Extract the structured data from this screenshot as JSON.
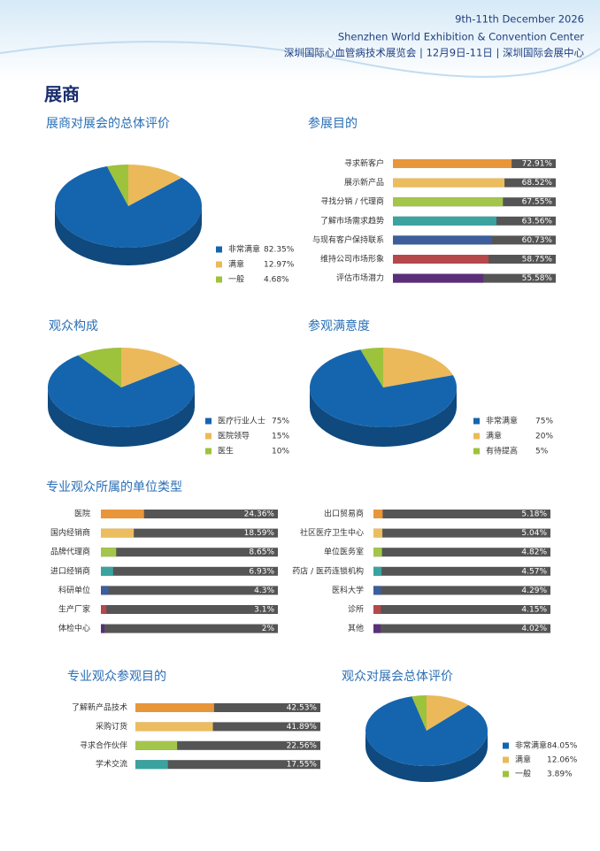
{
  "header": {
    "line1": "9th-11th December 2026",
    "line2": "Shenzhen World Exhibition & Convention Center",
    "line3": "深圳国际心血管病技术展览会 | 12月9日-11日 | 深圳国际会展中心"
  },
  "section_title": "展商",
  "chart_data": [
    {
      "type": "pie",
      "title": "展商对展会的总体评价",
      "categories": [
        "非常满意",
        "满意",
        "一般"
      ],
      "values": [
        82.35,
        12.97,
        4.68
      ],
      "value_labels": [
        "82.35%",
        "12.97%",
        "4.68%"
      ],
      "colors": [
        "#1565ae",
        "#ecb95a",
        "#9dc23c"
      ]
    },
    {
      "type": "bar",
      "title": "参展目的",
      "horizontal": true,
      "categories": [
        "寻求新客户",
        "展示新产品",
        "寻找分销 / 代理商",
        "了解市场需求趋势",
        "与现有客户保持联系",
        "维持公司市场形象",
        "评估市场潜力"
      ],
      "values": [
        72.91,
        68.52,
        67.55,
        63.56,
        60.73,
        58.75,
        55.58
      ],
      "value_labels": [
        "72.91%",
        "68.52%",
        "67.55%",
        "63.56%",
        "60.73%",
        "58.75%",
        "55.58%"
      ],
      "colors": [
        "#e8963a",
        "#ecbd5e",
        "#a3c64a",
        "#3aa3a0",
        "#3d5e9a",
        "#b5484a",
        "#5b2e7a"
      ],
      "xlim": [
        0,
        100
      ]
    },
    {
      "type": "pie",
      "title": "观众构成",
      "categories": [
        "医疗行业人士",
        "医院领导",
        "医生"
      ],
      "values": [
        75,
        15,
        10
      ],
      "value_labels": [
        "75%",
        "15%",
        "10%"
      ],
      "colors": [
        "#1565ae",
        "#ecb95a",
        "#9dc23c"
      ]
    },
    {
      "type": "pie",
      "title": "参观满意度",
      "categories": [
        "非常满意",
        "满意",
        "有待提高"
      ],
      "values": [
        75,
        20,
        5
      ],
      "value_labels": [
        "75%",
        "20%",
        "5%"
      ],
      "colors": [
        "#1565ae",
        "#ecb95a",
        "#9dc23c"
      ]
    },
    {
      "type": "bar",
      "title": "专业观众所属的单位类型",
      "horizontal": true,
      "categories": [
        "医院",
        "国内经销商",
        "品牌代理商",
        "进口经销商",
        "科研单位",
        "生产厂家",
        "体检中心",
        "出口贸易商",
        "社区医疗卫生中心",
        "单位医务室",
        "药店 / 医药连锁机构",
        "医科大学",
        "诊所",
        "其他"
      ],
      "values": [
        24.36,
        18.59,
        8.65,
        6.93,
        4.3,
        3.1,
        2,
        5.18,
        5.04,
        4.82,
        4.57,
        4.29,
        4.15,
        4.02
      ],
      "value_labels": [
        "24.36%",
        "18.59%",
        "8.65%",
        "6.93%",
        "4.3%",
        "3.1%",
        "2%",
        "5.18%",
        "5.04%",
        "4.82%",
        "4.57%",
        "4.29%",
        "4.15%",
        "4.02%"
      ],
      "colors": [
        "#e8963a",
        "#ecbd5e",
        "#a3c64a",
        "#3aa3a0",
        "#3d5e9a",
        "#b5484a",
        "#5b2e7a",
        "#e8963a",
        "#ecbd5e",
        "#a3c64a",
        "#3aa3a0",
        "#3d5e9a",
        "#b5484a",
        "#5b2e7a"
      ],
      "xlim": [
        0,
        100
      ]
    },
    {
      "type": "bar",
      "title": "专业观众参观目的",
      "horizontal": true,
      "categories": [
        "了解新产品技术",
        "采购订货",
        "寻求合作伙伴",
        "学术交流"
      ],
      "values": [
        42.53,
        41.89,
        22.56,
        17.55
      ],
      "value_labels": [
        "42.53%",
        "41.89%",
        "22.56%",
        "17.55%"
      ],
      "colors": [
        "#e8963a",
        "#ecbd5e",
        "#a3c64a",
        "#3aa3a0"
      ],
      "xlim": [
        0,
        100
      ]
    },
    {
      "type": "pie",
      "title": "观众对展会总体评价",
      "categories": [
        "非常满意",
        "满意",
        "一般"
      ],
      "values": [
        84.05,
        12.06,
        3.89
      ],
      "value_labels": [
        "84.05%",
        "12.06%",
        "3.89%"
      ],
      "colors": [
        "#1565ae",
        "#ecb95a",
        "#9dc23c"
      ]
    }
  ]
}
